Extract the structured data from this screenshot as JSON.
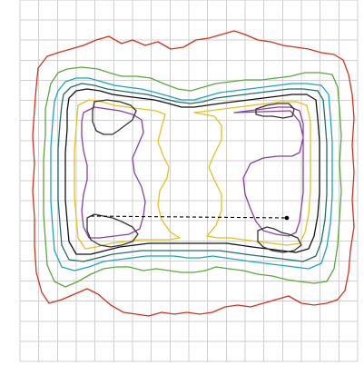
{
  "figure": {
    "background": "#ffffff",
    "grid_color": "#cfcfcf",
    "grid_divisions": {
      "columns": 18,
      "rows": 18
    }
  },
  "contour_levels": [
    {
      "id": "red",
      "color": "#d62f1e"
    },
    {
      "id": "green",
      "color": "#5aa83a"
    },
    {
      "id": "cyan",
      "color": "#1aa3c9"
    },
    {
      "id": "teal",
      "color": "#1f6d6d"
    },
    {
      "id": "black",
      "color": "#111111"
    },
    {
      "id": "yellow",
      "color": "#e8c01a"
    },
    {
      "id": "purple",
      "color": "#8a3fa3"
    },
    {
      "id": "dark-gray",
      "color": "#333333"
    }
  ],
  "reference_line": {
    "style": "dashed",
    "color": "#000000",
    "end_marker": "dot"
  }
}
